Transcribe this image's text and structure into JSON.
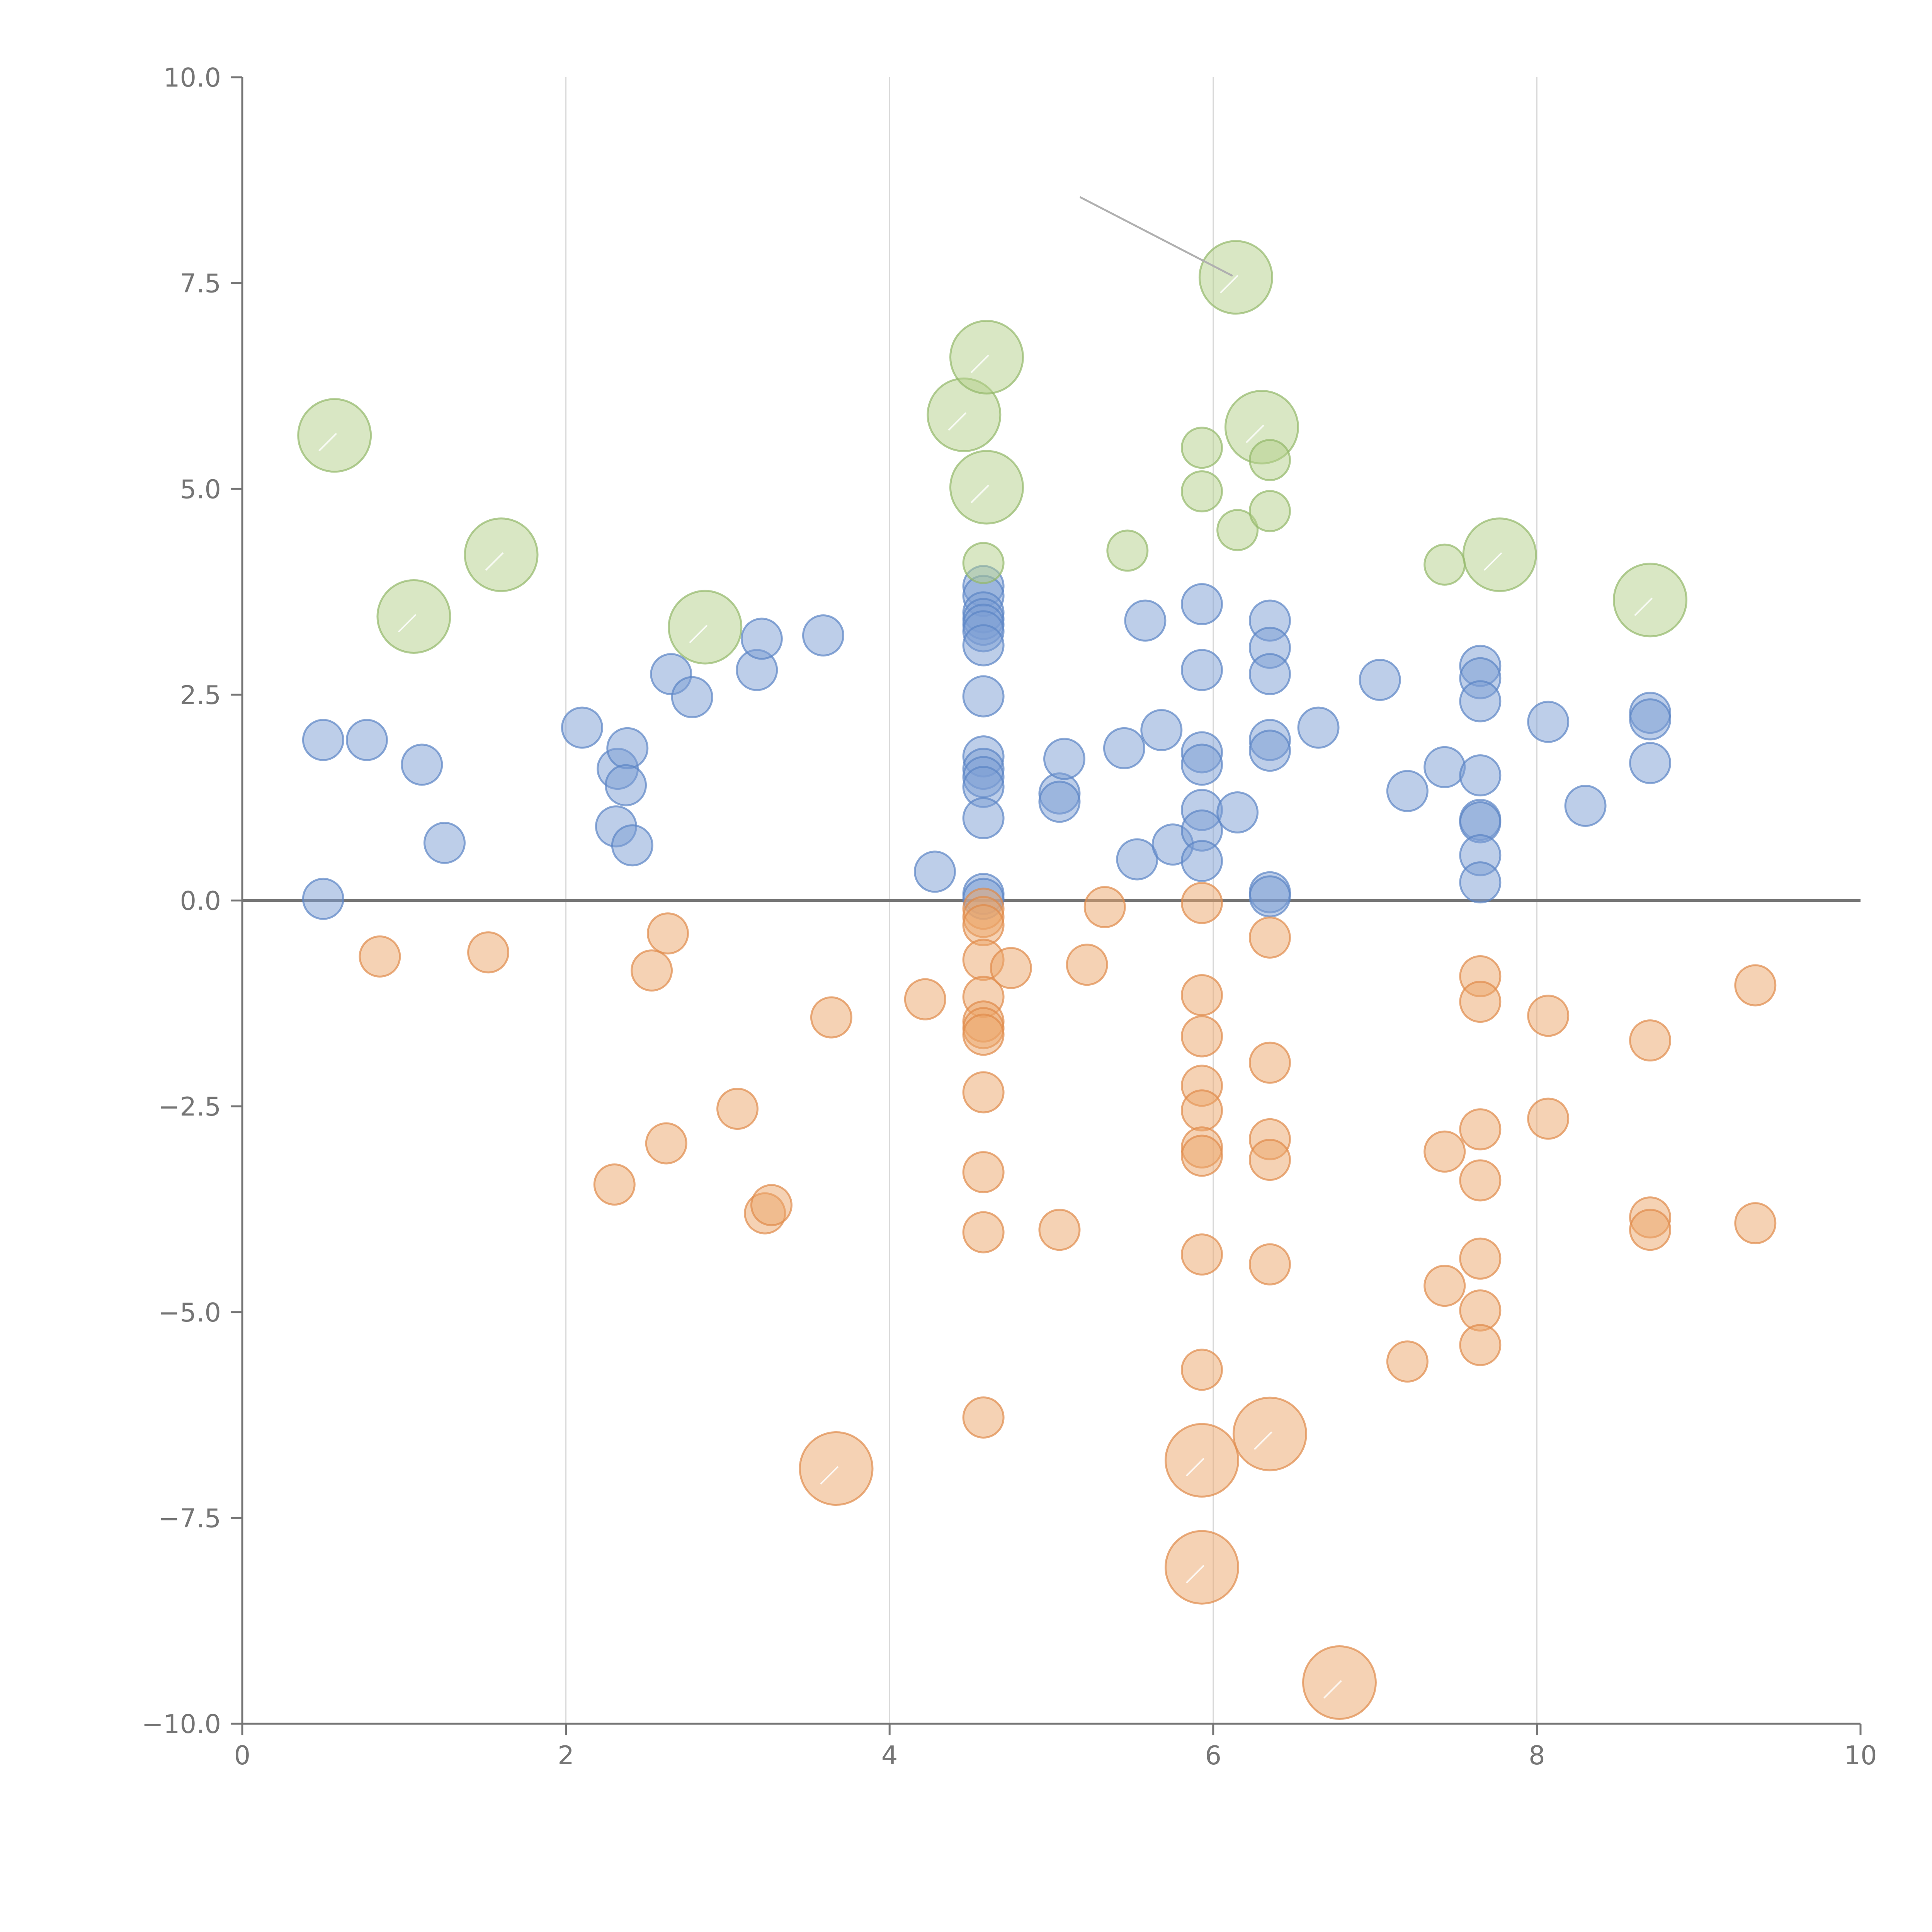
{
  "chart_data": {
    "type": "scatter",
    "title": "",
    "xlabel": "",
    "ylabel": "",
    "xlim": [
      0,
      10
    ],
    "ylim": [
      -10,
      10
    ],
    "grid": "vertical",
    "x_ticks": [
      "0",
      "2",
      "4",
      "6",
      "8",
      "10"
    ],
    "y_ticks": [
      "10.0",
      "7.5",
      "5.0",
      "2.5",
      "0.0",
      "−2.5",
      "−5.0",
      "−7.5",
      "−10.0"
    ],
    "colors": {
      "blue": "#7b9ed4",
      "blue_stroke": "#5b84c4",
      "orange": "#eca56a",
      "orange_stroke": "#e08a4a",
      "green": "#b3d08a",
      "green_stroke": "#93b86a",
      "axis": "#757575",
      "grid": "#d9d9d9"
    },
    "series": [
      {
        "name": "blue",
        "marker_size": "small",
        "points": [
          [
            0.5,
            1.95
          ],
          [
            0.77,
            1.95
          ],
          [
            1.11,
            1.65
          ],
          [
            1.25,
            0.7
          ],
          [
            0.5,
            0.02
          ],
          [
            2.1,
            2.1
          ],
          [
            2.32,
            1.6
          ],
          [
            2.38,
            1.85
          ],
          [
            2.37,
            1.4
          ],
          [
            2.31,
            0.9
          ],
          [
            2.41,
            0.67
          ],
          [
            2.65,
            2.75
          ],
          [
            2.78,
            2.47
          ],
          [
            3.18,
            2.8
          ],
          [
            3.21,
            3.18
          ],
          [
            3.59,
            3.22
          ],
          [
            4.28,
            0.35
          ],
          [
            4.58,
            3.82
          ],
          [
            4.58,
            3.7
          ],
          [
            4.58,
            3.5
          ],
          [
            4.58,
            3.42
          ],
          [
            4.58,
            3.35
          ],
          [
            4.58,
            3.27
          ],
          [
            4.58,
            3.1
          ],
          [
            4.58,
            2.48
          ],
          [
            4.58,
            1.75
          ],
          [
            4.58,
            1.6
          ],
          [
            4.58,
            1.5
          ],
          [
            4.58,
            1.38
          ],
          [
            4.58,
            1.0
          ],
          [
            4.58,
            0.08
          ],
          [
            4.58,
            0.02
          ],
          [
            5.05,
            1.3
          ],
          [
            5.05,
            1.2
          ],
          [
            5.08,
            1.72
          ],
          [
            5.45,
            1.85
          ],
          [
            5.53,
            0.5
          ],
          [
            5.58,
            3.4
          ],
          [
            5.68,
            2.07
          ],
          [
            5.75,
            0.68
          ],
          [
            5.93,
            3.6
          ],
          [
            5.93,
            2.8
          ],
          [
            5.93,
            1.8
          ],
          [
            5.93,
            1.65
          ],
          [
            5.93,
            1.1
          ],
          [
            5.93,
            0.85
          ],
          [
            5.93,
            0.48
          ],
          [
            6.15,
            1.07
          ],
          [
            6.35,
            3.4
          ],
          [
            6.35,
            3.07
          ],
          [
            6.35,
            2.75
          ],
          [
            6.35,
            1.95
          ],
          [
            6.35,
            1.82
          ],
          [
            6.35,
            0.1
          ],
          [
            6.35,
            0.05
          ],
          [
            6.65,
            2.1
          ],
          [
            7.03,
            2.68
          ],
          [
            7.2,
            1.33
          ],
          [
            7.43,
            1.62
          ],
          [
            7.65,
            2.85
          ],
          [
            7.65,
            2.7
          ],
          [
            7.65,
            2.42
          ],
          [
            7.65,
            1.52
          ],
          [
            7.65,
            0.98
          ],
          [
            7.65,
            0.95
          ],
          [
            7.65,
            0.55
          ],
          [
            7.65,
            0.22
          ],
          [
            8.07,
            2.17
          ],
          [
            8.3,
            1.15
          ],
          [
            8.7,
            2.28
          ],
          [
            8.7,
            2.2
          ],
          [
            8.7,
            1.67
          ]
        ]
      },
      {
        "name": "orange",
        "marker_size": "small",
        "points": [
          [
            0.85,
            -0.68
          ],
          [
            1.52,
            -0.63
          ],
          [
            2.53,
            -0.85
          ],
          [
            2.63,
            -0.4
          ],
          [
            2.3,
            -3.45
          ],
          [
            2.62,
            -2.95
          ],
          [
            3.06,
            -2.53
          ],
          [
            3.23,
            -3.8
          ],
          [
            3.27,
            -3.7
          ],
          [
            3.64,
            -1.42
          ],
          [
            4.22,
            -1.2
          ],
          [
            4.58,
            -0.1
          ],
          [
            4.58,
            -0.2
          ],
          [
            4.58,
            -0.3
          ],
          [
            4.58,
            -0.72
          ],
          [
            4.58,
            -1.17
          ],
          [
            4.58,
            -1.47
          ],
          [
            4.58,
            -1.55
          ],
          [
            4.58,
            -1.63
          ],
          [
            4.58,
            -2.33
          ],
          [
            4.58,
            -3.3
          ],
          [
            4.58,
            -4.03
          ],
          [
            4.58,
            -6.28
          ],
          [
            4.75,
            -0.82
          ],
          [
            5.05,
            -4.0
          ],
          [
            5.22,
            -0.78
          ],
          [
            5.33,
            -0.08
          ],
          [
            5.93,
            -0.03
          ],
          [
            5.93,
            -1.15
          ],
          [
            5.93,
            -1.65
          ],
          [
            5.93,
            -2.25
          ],
          [
            5.93,
            -2.55
          ],
          [
            5.93,
            -3.0
          ],
          [
            5.93,
            -3.1
          ],
          [
            5.93,
            -4.3
          ],
          [
            5.93,
            -5.7
          ],
          [
            6.35,
            -0.45
          ],
          [
            6.35,
            -1.97
          ],
          [
            6.35,
            -2.9
          ],
          [
            6.35,
            -3.15
          ],
          [
            6.35,
            -4.42
          ],
          [
            7.2,
            -5.6
          ],
          [
            7.43,
            -3.05
          ],
          [
            7.43,
            -4.68
          ],
          [
            7.65,
            -0.92
          ],
          [
            7.65,
            -1.23
          ],
          [
            7.65,
            -2.78
          ],
          [
            7.65,
            -3.4
          ],
          [
            7.65,
            -4.35
          ],
          [
            7.65,
            -4.98
          ],
          [
            7.65,
            -5.4
          ],
          [
            8.07,
            -1.4
          ],
          [
            8.07,
            -2.65
          ],
          [
            8.7,
            -1.7
          ],
          [
            8.7,
            -3.85
          ],
          [
            8.7,
            -4.0
          ],
          [
            9.35,
            -1.03
          ],
          [
            9.35,
            -3.92
          ]
        ]
      },
      {
        "name": "orange-large",
        "marker_size": "large",
        "points": [
          [
            3.67,
            -6.9
          ],
          [
            5.93,
            -6.8
          ],
          [
            6.35,
            -6.48
          ],
          [
            5.93,
            -8.1
          ],
          [
            6.78,
            -9.5
          ]
        ]
      },
      {
        "name": "green",
        "marker_size": "small",
        "points": [
          [
            5.47,
            4.25
          ],
          [
            5.93,
            5.5
          ],
          [
            5.93,
            4.97
          ],
          [
            6.15,
            4.5
          ],
          [
            6.35,
            5.35
          ],
          [
            6.35,
            4.73
          ],
          [
            4.58,
            4.1
          ],
          [
            7.43,
            4.08
          ]
        ]
      },
      {
        "name": "green-large",
        "marker_size": "large",
        "points": [
          [
            0.57,
            5.65
          ],
          [
            1.06,
            3.45
          ],
          [
            1.6,
            4.2
          ],
          [
            2.86,
            3.32
          ],
          [
            4.46,
            5.9
          ],
          [
            4.6,
            6.6
          ],
          [
            4.6,
            5.02
          ],
          [
            6.14,
            7.57
          ],
          [
            6.3,
            5.75
          ],
          [
            7.77,
            4.2
          ],
          [
            8.7,
            3.65
          ]
        ]
      }
    ]
  }
}
